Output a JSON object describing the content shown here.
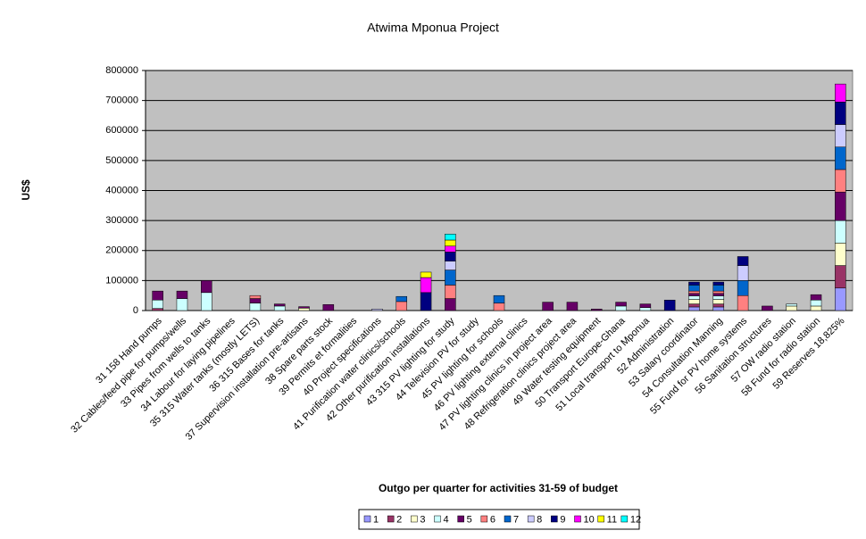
{
  "chart_data": {
    "type": "stacked_bar",
    "title": "Atwima Mponua Project",
    "x_label": "Outgo per quarter for activities 31-59 of budget",
    "y_label": "US$",
    "categories": [
      "31 158 Hand pumps",
      "32 Cables/feed pipe for pumps/wells",
      "33 Pipes from wells to tanks",
      "34 Labour for laying pipelines",
      "35 315 Water tanks (mostly LETS)",
      "36 315 Bases for tanks",
      "37 Supervision installation pre-artisans",
      "38 Spare parts stock",
      "39 Permits et formalities",
      "40 Project specifications",
      "41 Purification water clinics/schools",
      "42 Other purification installations",
      "43 315 PV lighting for study",
      "44 Television PV for study",
      "45 PV lighting for schools",
      "46 PV lighting external clinics",
      "47 PV lighting clinics in project area",
      "48 Refrigeration clinics project area",
      "49 Water testing equipment",
      "50 Transport Europe-Ghana",
      "51 Local transport to Mponua",
      "52 Administration",
      "53 Salary coordinator",
      "54 Consultation Manning",
      "55 Fund for PV home systems",
      "56 Sanitation structures",
      "57 OW radio station",
      "58 Fund for radio station",
      "59 Reserves 18,825%"
    ],
    "series": [
      {
        "name": "1",
        "color": "#9999FF",
        "values": [
          0,
          0,
          0,
          0,
          0,
          0,
          0,
          0,
          0,
          0,
          0,
          0,
          0,
          0,
          0,
          0,
          0,
          0,
          0,
          0,
          0,
          0,
          12000,
          12000,
          0,
          0,
          0,
          0,
          75000
        ]
      },
      {
        "name": "2",
        "color": "#993366",
        "values": [
          7000,
          0,
          0,
          0,
          0,
          0,
          0,
          0,
          0,
          0,
          0,
          0,
          0,
          0,
          0,
          0,
          0,
          0,
          0,
          0,
          0,
          0,
          10000,
          10000,
          0,
          0,
          0,
          0,
          75000
        ]
      },
      {
        "name": "3",
        "color": "#FFFFCC",
        "values": [
          0,
          0,
          0,
          0,
          0,
          0,
          8000,
          0,
          0,
          0,
          0,
          0,
          0,
          0,
          0,
          0,
          0,
          0,
          0,
          0,
          0,
          0,
          15000,
          15000,
          0,
          0,
          15000,
          15000,
          75000
        ]
      },
      {
        "name": "4",
        "color": "#CCFFFF",
        "values": [
          28000,
          40000,
          60000,
          0,
          25000,
          15000,
          0,
          0,
          0,
          0,
          0,
          0,
          0,
          0,
          0,
          0,
          0,
          0,
          0,
          15000,
          10000,
          0,
          12000,
          12000,
          0,
          0,
          7000,
          20000,
          75000
        ]
      },
      {
        "name": "5",
        "color": "#660066",
        "values": [
          30000,
          25000,
          40000,
          0,
          15000,
          7000,
          5000,
          20000,
          0,
          0,
          0,
          0,
          40000,
          0,
          0,
          0,
          28000,
          28000,
          5000,
          13000,
          12000,
          0,
          8000,
          8000,
          0,
          15000,
          0,
          18000,
          95000
        ]
      },
      {
        "name": "6",
        "color": "#FF8080",
        "values": [
          0,
          0,
          0,
          0,
          10000,
          0,
          0,
          0,
          0,
          0,
          30000,
          0,
          45000,
          0,
          25000,
          0,
          0,
          0,
          0,
          0,
          0,
          0,
          8000,
          8000,
          50000,
          0,
          0,
          0,
          75000
        ]
      },
      {
        "name": "7",
        "color": "#0066CC",
        "values": [
          0,
          0,
          0,
          0,
          0,
          0,
          0,
          0,
          0,
          0,
          17000,
          0,
          50000,
          0,
          25000,
          0,
          0,
          0,
          0,
          0,
          0,
          0,
          20000,
          20000,
          50000,
          0,
          0,
          0,
          75000
        ]
      },
      {
        "name": "8",
        "color": "#CCCCFF",
        "values": [
          0,
          0,
          0,
          0,
          0,
          0,
          0,
          0,
          0,
          5000,
          0,
          0,
          30000,
          0,
          0,
          0,
          0,
          0,
          0,
          0,
          0,
          0,
          0,
          0,
          50000,
          0,
          0,
          0,
          75000
        ]
      },
      {
        "name": "9",
        "color": "#000080",
        "values": [
          0,
          0,
          0,
          0,
          0,
          0,
          0,
          0,
          0,
          0,
          0,
          60000,
          30000,
          0,
          0,
          0,
          0,
          0,
          0,
          0,
          0,
          35000,
          10000,
          10000,
          30000,
          0,
          0,
          0,
          75000
        ]
      },
      {
        "name": "10",
        "color": "#FF00FF",
        "values": [
          0,
          0,
          0,
          0,
          0,
          0,
          0,
          0,
          0,
          0,
          0,
          50000,
          20000,
          0,
          0,
          0,
          0,
          0,
          0,
          0,
          0,
          0,
          0,
          0,
          0,
          0,
          0,
          0,
          60000
        ]
      },
      {
        "name": "11",
        "color": "#FFFF00",
        "values": [
          0,
          0,
          0,
          0,
          0,
          0,
          0,
          0,
          0,
          0,
          0,
          18000,
          20000,
          0,
          0,
          0,
          0,
          0,
          0,
          0,
          0,
          0,
          0,
          0,
          0,
          0,
          0,
          0,
          0
        ]
      },
      {
        "name": "12",
        "color": "#00FFFF",
        "values": [
          0,
          0,
          0,
          0,
          0,
          0,
          0,
          0,
          0,
          0,
          0,
          0,
          20000,
          0,
          0,
          0,
          0,
          0,
          0,
          0,
          0,
          0,
          0,
          0,
          0,
          0,
          0,
          0,
          0
        ]
      }
    ],
    "ylim": [
      0,
      800000
    ],
    "yticks": [
      0,
      100000,
      200000,
      300000,
      400000,
      500000,
      600000,
      700000,
      800000
    ],
    "grid": true,
    "plot_background": "#C0C0C0",
    "legend": "bottom"
  }
}
